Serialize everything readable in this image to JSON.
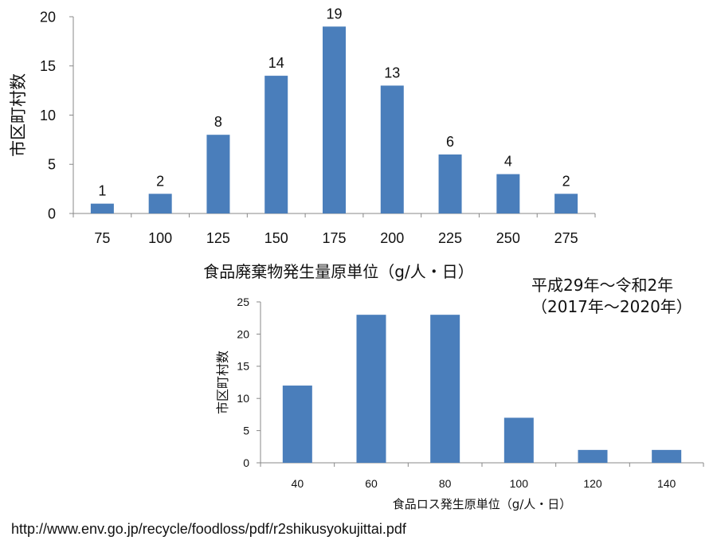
{
  "chart_data": [
    {
      "type": "bar",
      "categories": [
        "75",
        "100",
        "125",
        "150",
        "175",
        "200",
        "225",
        "250",
        "275"
      ],
      "values": [
        1,
        2,
        8,
        14,
        19,
        13,
        6,
        4,
        2
      ],
      "data_labels": [
        "1",
        "2",
        "8",
        "14",
        "19",
        "13",
        "6",
        "4",
        "2"
      ],
      "xlabel": "食品廃棄物発生量原単位（g/人・日）",
      "ylabel": "市区町村数",
      "ylim": [
        0,
        20
      ],
      "yticks": [
        0,
        5,
        10,
        15,
        20
      ],
      "grid": false,
      "bar_color": "#4a7ebb"
    },
    {
      "type": "bar",
      "categories": [
        "40",
        "60",
        "80",
        "100",
        "120",
        "140"
      ],
      "values": [
        12,
        23,
        23,
        7,
        2,
        2
      ],
      "xlabel": "食品ロス発生原単位（g/人・日）",
      "ylabel": "市区町村数",
      "ylim": [
        0,
        25
      ],
      "yticks": [
        0,
        5,
        10,
        15,
        20,
        25
      ],
      "grid": false,
      "bar_color": "#4a7ebb"
    }
  ],
  "period_note": {
    "line1": "平成29年～令和2年",
    "line2": "（2017年～2020年）"
  },
  "source_url": "http://www.env.go.jp/recycle/foodloss/pdf/r2shikusyokujittai.pdf"
}
